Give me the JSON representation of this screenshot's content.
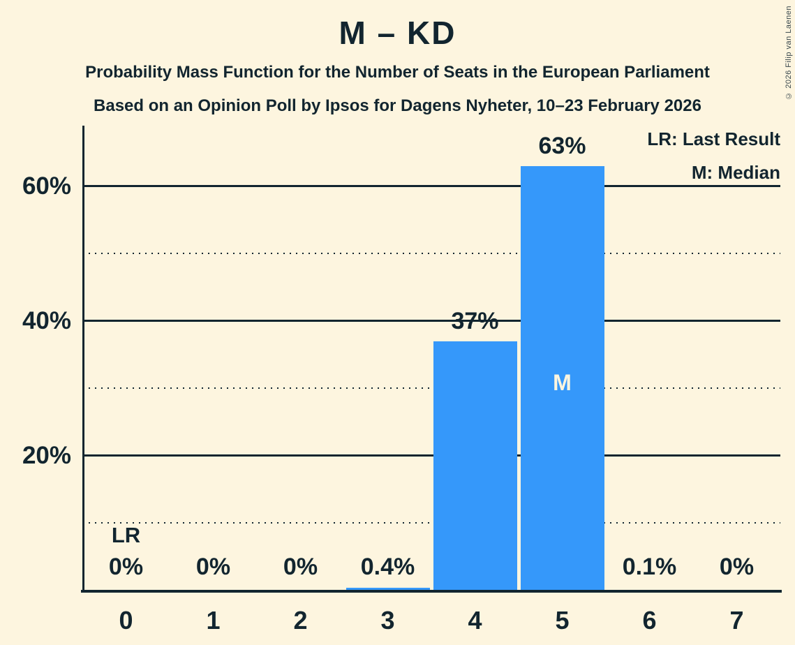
{
  "title": "M – KD",
  "subtitle1": "Probability Mass Function for the Number of Seats in the European Parliament",
  "subtitle2": "Based on an Opinion Poll by Ipsos for Dagens Nyheter, 10–23 February 2026",
  "copyright": "© 2026 Filip van Laenen",
  "legend": {
    "lr": "LR: Last Result",
    "m": "M: Median"
  },
  "annotations": {
    "lr_label": "LR",
    "lr_seat": 0,
    "median_label": "M",
    "median_seat": 5
  },
  "colors": {
    "background": "#fdf5df",
    "bar": "#3598fa",
    "text": "#12252f",
    "bar_label": "#fdf5df"
  },
  "chart_data": {
    "type": "bar",
    "title": "M – KD",
    "xlabel": "",
    "ylabel": "",
    "categories": [
      "0",
      "1",
      "2",
      "3",
      "4",
      "5",
      "6",
      "7"
    ],
    "values": [
      0,
      0,
      0,
      0.4,
      37,
      63,
      0.1,
      0
    ],
    "value_labels": [
      "0%",
      "0%",
      "0%",
      "0.4%",
      "37%",
      "63%",
      "0.1%",
      "0%"
    ],
    "ylim": [
      0,
      69
    ],
    "yticks": [
      {
        "value": 20,
        "label": "20%"
      },
      {
        "value": 40,
        "label": "40%"
      },
      {
        "value": 60,
        "label": "60%"
      }
    ],
    "minor_gridlines": [
      10,
      30,
      50
    ],
    "grid": true,
    "legend_position": "top-right"
  }
}
